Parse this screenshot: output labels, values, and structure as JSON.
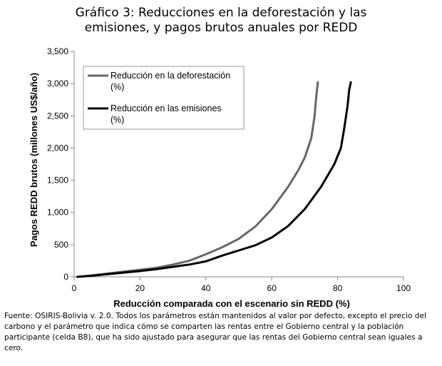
{
  "header": {
    "title_line1": "Gráfico 3: Reducciones en la deforestación y las",
    "title_line2": "emisiones, y pagos brutos anuales por REDD"
  },
  "footer": {
    "source": "Fuente: OSIRIS-Bolivia v. 2.0. Todos los parámetros están mantenidos al valor por defecto, excepto el precio del carbono y el parámetro que indica cómo se comparten las rentas entre el Gobierno central y la población participante (celda B8), que ha sido ajustado para asegurar que las rentas del Gobierno central sean iguales a cero."
  },
  "chart_data": {
    "type": "line",
    "title": "Gráfico 3: Reducciones en la deforestación y las emisiones, y pagos brutos anuales por REDD",
    "xlabel": "Reducción comparada con el escenario sin REDD (%)",
    "ylabel": "Pagos REDD brutos (millones US$/año)",
    "xlim": [
      0,
      100
    ],
    "ylim": [
      0,
      3500
    ],
    "x_ticks": [
      "0",
      "20",
      "40",
      "60",
      "80",
      "100"
    ],
    "y_ticks": [
      "0",
      "500",
      "1,000",
      "1,500",
      "2,000",
      "2,500",
      "3,000",
      "3,500"
    ],
    "grid": false,
    "legend_position": "top-left",
    "series": [
      {
        "name": "Reducción en la deforestación (%)",
        "legend_line1": "Reducción en la deforestación",
        "legend_line2": "(%)",
        "color": "#666666",
        "x": [
          1,
          5,
          10,
          15,
          20,
          25,
          30,
          35,
          40,
          45,
          50,
          55,
          60,
          65,
          68,
          70,
          72,
          73,
          73.5,
          74
        ],
        "y": [
          0,
          20,
          50,
          80,
          110,
          140,
          190,
          250,
          350,
          460,
          590,
          780,
          1050,
          1400,
          1650,
          1850,
          2150,
          2500,
          2800,
          3020
        ]
      },
      {
        "name": "Reducción en las emisiones (%)",
        "legend_line1": "Reducción en las emisiones",
        "legend_line2": "(%)",
        "color": "#000000",
        "x": [
          1,
          5,
          10,
          15,
          20,
          25,
          30,
          35,
          40,
          45,
          50,
          55,
          60,
          65,
          70,
          75,
          79,
          81,
          82,
          83,
          83.5,
          84
        ],
        "y": [
          0,
          15,
          40,
          65,
          90,
          120,
          155,
          190,
          240,
          330,
          410,
          490,
          610,
          790,
          1050,
          1400,
          1750,
          2000,
          2300,
          2650,
          2900,
          3020
        ]
      }
    ]
  }
}
